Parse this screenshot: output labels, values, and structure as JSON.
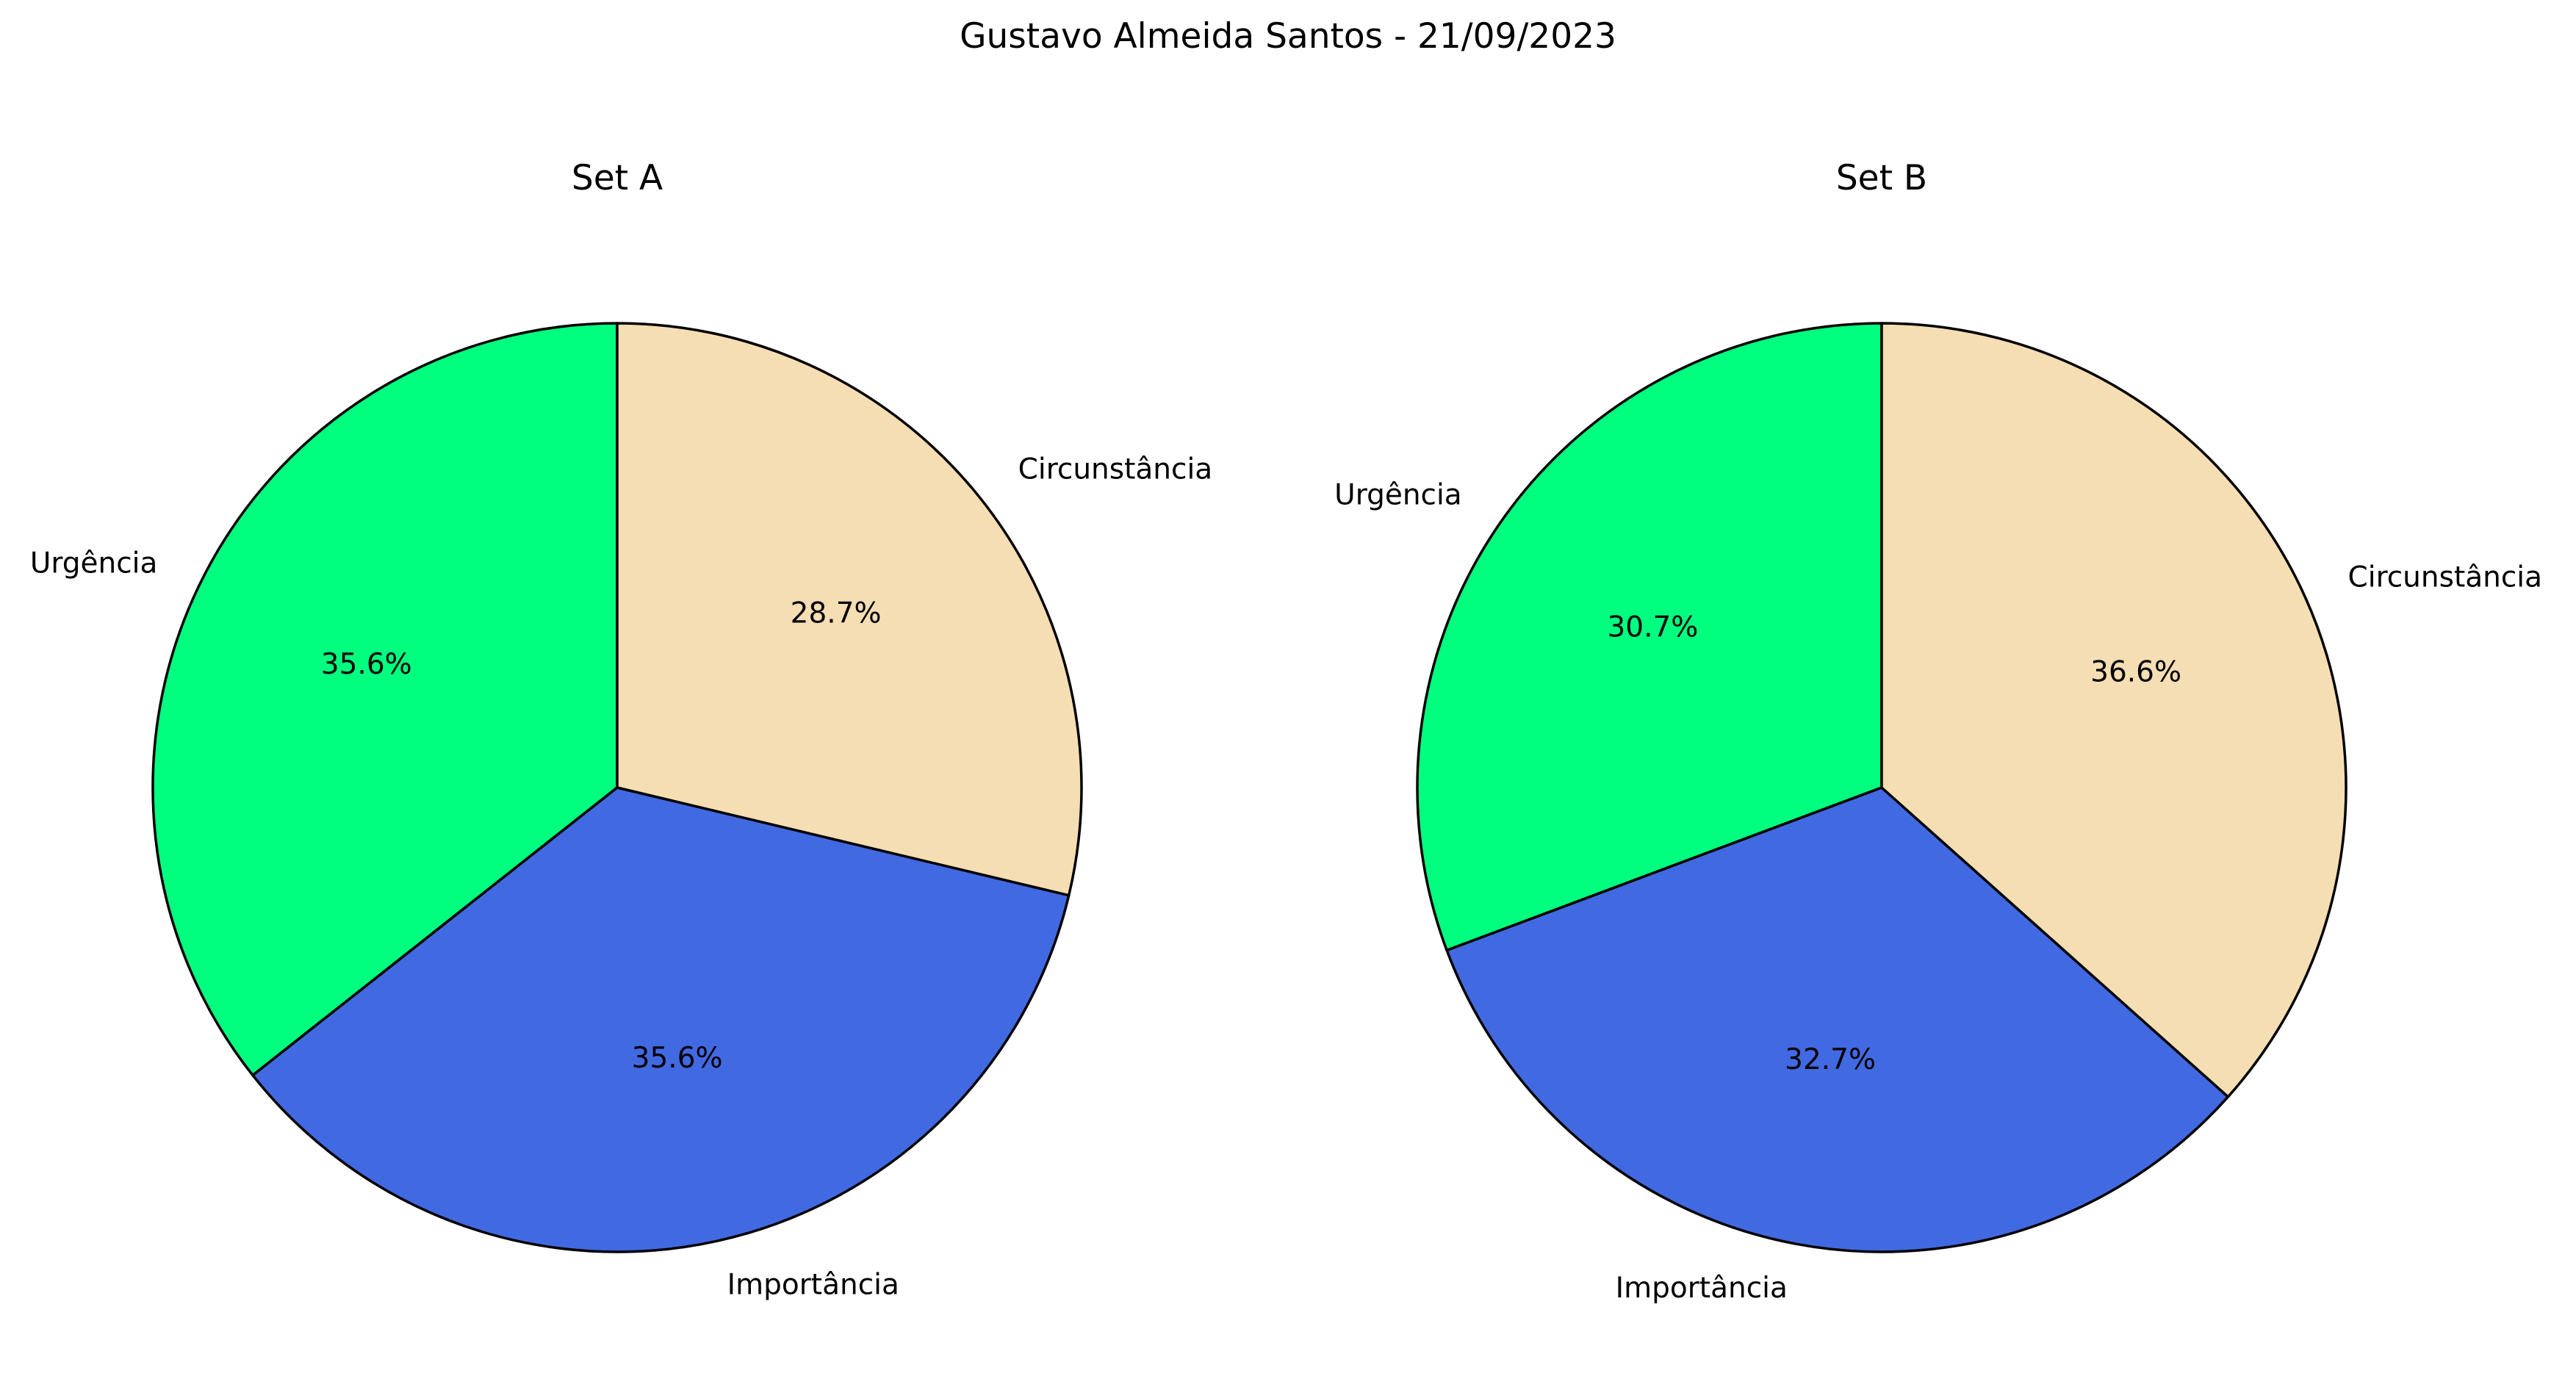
{
  "chart_data": {
    "title": "Gustavo Almeida Santos - 21/09/2023",
    "charts": [
      {
        "type": "pie",
        "title": "Set A",
        "categories": [
          "Urgência",
          "Importância",
          "Circunstância"
        ],
        "values": [
          35.6,
          35.6,
          28.7
        ],
        "percent_labels": [
          "35.6%",
          "35.6%",
          "28.7%"
        ],
        "colors": [
          "#00ff7f",
          "#4169e1",
          "#f5deb3"
        ],
        "edge_color": "#000000",
        "start_angle_deg": 90,
        "direction": "counterclockwise"
      },
      {
        "type": "pie",
        "title": "Set B",
        "categories": [
          "Urgência",
          "Importância",
          "Circunstância"
        ],
        "values": [
          30.7,
          32.7,
          36.6
        ],
        "percent_labels": [
          "30.7%",
          "32.7%",
          "36.6%"
        ],
        "colors": [
          "#00ff7f",
          "#4169e1",
          "#f5deb3"
        ],
        "edge_color": "#000000",
        "start_angle_deg": 90,
        "direction": "counterclockwise"
      }
    ]
  }
}
